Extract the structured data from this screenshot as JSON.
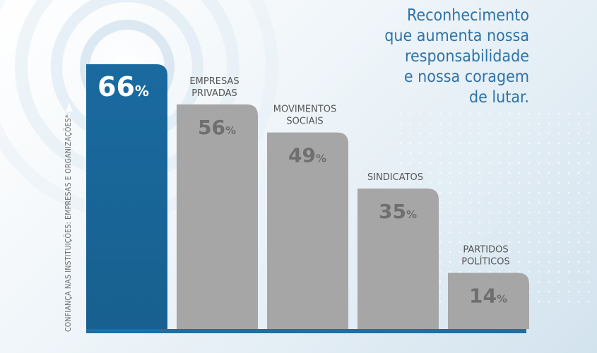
{
  "headline": {
    "lines": [
      "Reconhecimento",
      "que aumenta nossa",
      "responsabilidade",
      "e nossa coragem",
      "de lutar."
    ]
  },
  "colors": {
    "highlight_bar": "#1e6ea2",
    "bar": "#a6a6a6",
    "value_highlight": "#ffffff",
    "value": "#6f6f6f",
    "category_label": "#555555",
    "headline": "#2f73a6",
    "baseline": "#1f6fa3"
  },
  "chart_data": {
    "type": "bar",
    "title": "",
    "xlabel": "",
    "ylabel": "CONFIANÇA NAS INSTITUIÇÕES: EMPRESAS E ORGANIZAÇÕES*",
    "ylim": [
      0,
      70
    ],
    "value_suffix": "%",
    "categories": [
      "",
      "EMPRESAS PRIVADAS",
      "MOVIMENTOS SOCIAIS",
      "SINDICATOS",
      "PARTIDOS POLÍTICOS"
    ],
    "category_lines": [
      [],
      [
        "EMPRESAS",
        "PRIVADAS"
      ],
      [
        "MOVIMENTOS",
        "SOCIAIS"
      ],
      [
        "SINDICATOS"
      ],
      [
        "PARTIDOS",
        "POLÍTICOS"
      ]
    ],
    "values": [
      66,
      56,
      49,
      35,
      14
    ],
    "highlight_index": 0,
    "grid": false
  }
}
